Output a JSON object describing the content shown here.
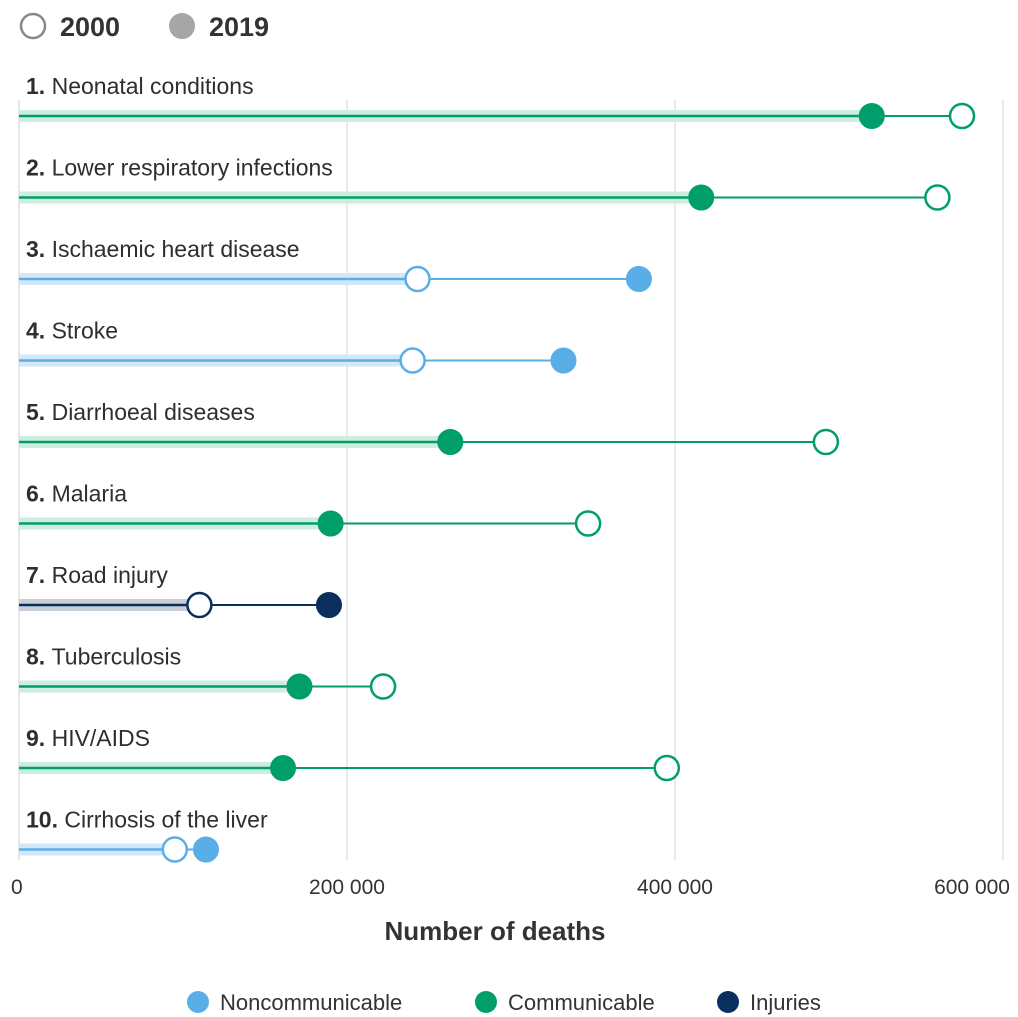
{
  "colors": {
    "noncommunicable": "#5aaee8",
    "communicable": "#009e6b",
    "injuries": "#0b2f5c",
    "gridline": "#d4d4d4",
    "axis_text": "#333333",
    "band_noncommunicable": "#d2e8f8",
    "band_communicable": "#cdeede",
    "band_injuries": "#c8cfd9"
  },
  "top_legend": {
    "items": [
      {
        "label": "2000",
        "style": "hollow"
      },
      {
        "label": "2019",
        "style": "filled",
        "color": "#a6a6a6"
      }
    ]
  },
  "chart_data": {
    "type": "dumbbell",
    "xlabel": "Number of deaths",
    "xlim": [
      0,
      600000
    ],
    "xticks": [
      0,
      200000,
      400000,
      600000
    ],
    "xtick_labels": [
      "0",
      "200 000",
      "400 000",
      "600 000"
    ],
    "grid": true,
    "bottom_legend": [
      {
        "label": "Noncommunicable",
        "category": "noncommunicable"
      },
      {
        "label": "Communicable",
        "category": "communicable"
      },
      {
        "label": "Injuries",
        "category": "injuries"
      }
    ],
    "rows": [
      {
        "rank": "1.",
        "name": "Neonatal conditions",
        "category": "communicable",
        "v2000": 575000,
        "v2019": 520000
      },
      {
        "rank": "2.",
        "name": "Lower respiratory infections",
        "category": "communicable",
        "v2000": 560000,
        "v2019": 416000
      },
      {
        "rank": "3.",
        "name": "Ischaemic heart disease",
        "category": "noncommunicable",
        "v2000": 243000,
        "v2019": 378000
      },
      {
        "rank": "4.",
        "name": "Stroke",
        "category": "noncommunicable",
        "v2000": 240000,
        "v2019": 332000
      },
      {
        "rank": "5.",
        "name": "Diarrhoeal diseases",
        "category": "communicable",
        "v2000": 492000,
        "v2019": 263000
      },
      {
        "rank": "6.",
        "name": "Malaria",
        "category": "communicable",
        "v2000": 347000,
        "v2019": 190000
      },
      {
        "rank": "7.",
        "name": "Road injury",
        "category": "injuries",
        "v2000": 110000,
        "v2019": 189000
      },
      {
        "rank": "8.",
        "name": "Tuberculosis",
        "category": "communicable",
        "v2000": 222000,
        "v2019": 171000
      },
      {
        "rank": "9.",
        "name": "HIV/AIDS",
        "category": "communicable",
        "v2000": 395000,
        "v2019": 161000
      },
      {
        "rank": "10.",
        "name": "Cirrhosis of the liver",
        "category": "noncommunicable",
        "v2000": 95000,
        "v2019": 114000
      }
    ]
  }
}
